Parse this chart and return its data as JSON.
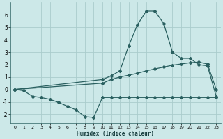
{
  "xlabel": "Humidex (Indice chaleur)",
  "background_color": "#cce8e8",
  "grid_color": "#aacccc",
  "line_color": "#2a6060",
  "xlim": [
    -0.5,
    23.5
  ],
  "ylim": [
    -2.7,
    7.0
  ],
  "xticks": [
    0,
    1,
    2,
    3,
    4,
    5,
    6,
    7,
    8,
    9,
    10,
    11,
    12,
    13,
    14,
    15,
    16,
    17,
    18,
    19,
    20,
    21,
    22,
    23
  ],
  "yticks": [
    -2,
    -1,
    0,
    1,
    2,
    3,
    4,
    5,
    6
  ],
  "series1_x": [
    0,
    1,
    2,
    3,
    4,
    5,
    6,
    7,
    8,
    9,
    10,
    11,
    12,
    13,
    14,
    15,
    16,
    17,
    18,
    19,
    20,
    21,
    22,
    23
  ],
  "series1_y": [
    0,
    -0.1,
    -0.55,
    -0.65,
    -0.8,
    -1.05,
    -1.35,
    -1.65,
    -2.2,
    -2.25,
    -0.65,
    -0.65,
    -0.65,
    -0.65,
    -0.65,
    -0.65,
    -0.65,
    -0.65,
    -0.65,
    -0.65,
    -0.65,
    -0.65,
    -0.65,
    -0.65
  ],
  "series2_x": [
    0,
    10,
    11,
    12,
    13,
    14,
    15,
    16,
    17,
    18,
    19,
    20,
    21,
    22,
    23
  ],
  "series2_y": [
    0,
    0.5,
    0.8,
    1.0,
    1.15,
    1.3,
    1.5,
    1.65,
    1.8,
    1.95,
    2.05,
    2.15,
    2.2,
    2.05,
    0.0
  ],
  "series3_x": [
    0,
    10,
    11,
    12,
    13,
    14,
    15,
    16,
    17,
    18,
    19,
    20,
    21,
    22,
    23
  ],
  "series3_y": [
    0,
    0.8,
    1.1,
    1.5,
    3.5,
    5.2,
    6.3,
    6.3,
    5.3,
    3.0,
    2.5,
    2.5,
    2.0,
    1.9,
    -0.55
  ]
}
